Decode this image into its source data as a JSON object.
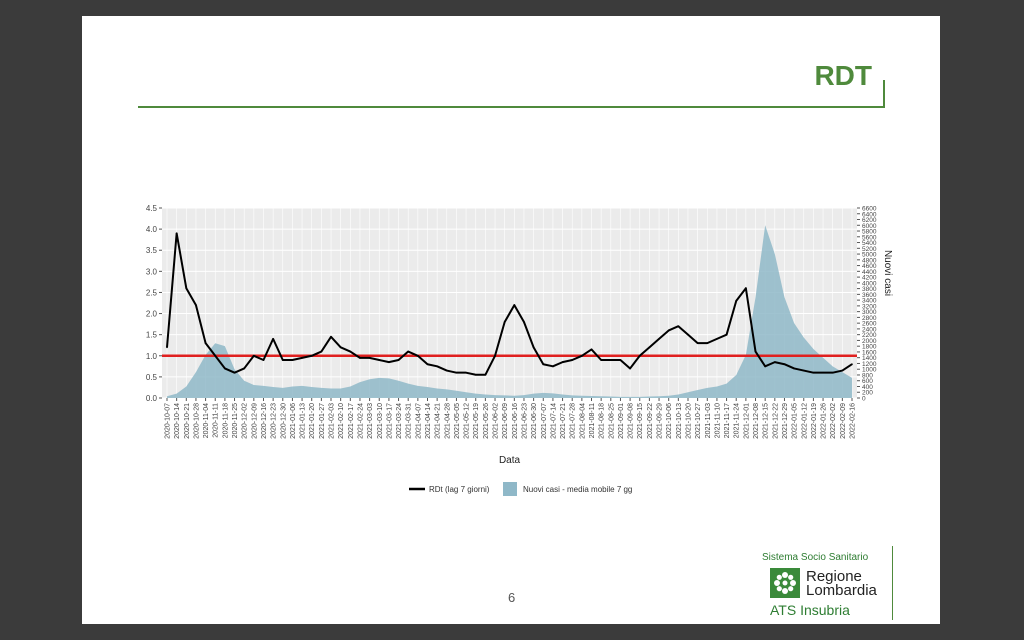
{
  "slide": {
    "title": "RDT",
    "page_number": "6",
    "logo": {
      "sistema": "Sistema Socio Sanitario",
      "region_line1": "Regione",
      "region_line2": "Lombardia",
      "ats": "ATS Insubria"
    }
  },
  "colors": {
    "accent": "#4f8a3c",
    "rdt_line": "#000000",
    "cases_area": "#8fb8c8",
    "threshold": "#e0201f",
    "panel_bg": "#ebebeb"
  },
  "chart_data": {
    "type": "line",
    "xlabel": "Data",
    "ylabel_right": "Nuovi casi",
    "y_left_lim": [
      0,
      4.5
    ],
    "y_left_ticks": [
      "0.0",
      "0.5",
      "1.0",
      "1.5",
      "2.0",
      "2.5",
      "3.0",
      "3.5",
      "4.0",
      "4.5"
    ],
    "y_right_lim": [
      0,
      6600
    ],
    "y_right_ticks": [
      "0",
      "200",
      "400",
      "600",
      "800",
      "1000",
      "1200",
      "1400",
      "1600",
      "1800",
      "2000",
      "2200",
      "2400",
      "2600",
      "2800",
      "3000",
      "3200",
      "3400",
      "3600",
      "3800",
      "4000",
      "4200",
      "4400",
      "4600",
      "4800",
      "5000",
      "5200",
      "5400",
      "5600",
      "5800",
      "6000",
      "6200",
      "6400",
      "6600"
    ],
    "x_ticks": [
      "2020-10-07",
      "2020-10-14",
      "2020-10-21",
      "2020-10-28",
      "2020-11-04",
      "2020-11-11",
      "2020-11-18",
      "2020-11-25",
      "2020-12-02",
      "2020-12-09",
      "2020-12-16",
      "2020-12-23",
      "2020-12-30",
      "2021-01-06",
      "2021-01-13",
      "2021-01-20",
      "2021-01-27",
      "2021-02-03",
      "2021-02-10",
      "2021-02-17",
      "2021-02-24",
      "2021-03-03",
      "2021-03-10",
      "2021-03-17",
      "2021-03-24",
      "2021-03-31",
      "2021-04-07",
      "2021-04-14",
      "2021-04-21",
      "2021-04-28",
      "2021-05-05",
      "2021-05-12",
      "2021-05-19",
      "2021-05-26",
      "2021-06-02",
      "2021-06-09",
      "2021-06-16",
      "2021-06-23",
      "2021-06-30",
      "2021-07-07",
      "2021-07-14",
      "2021-07-21",
      "2021-07-28",
      "2021-08-04",
      "2021-08-11",
      "2021-08-18",
      "2021-08-25",
      "2021-09-01",
      "2021-09-08",
      "2021-09-15",
      "2021-09-22",
      "2021-09-29",
      "2021-10-06",
      "2021-10-13",
      "2021-10-20",
      "2021-10-27",
      "2021-11-03",
      "2021-11-10",
      "2021-11-17",
      "2021-11-24",
      "2021-12-01",
      "2021-12-08",
      "2021-12-15",
      "2021-12-22",
      "2021-12-29",
      "2022-01-05",
      "2022-01-12",
      "2022-01-19",
      "2022-01-26",
      "2022-02-02",
      "2022-02-09",
      "2022-02-16"
    ],
    "threshold": 1.0,
    "legend": [
      {
        "name": "RDt (lag 7 giorni)"
      },
      {
        "name": "Nuovi casi - media mobile 7 gg"
      }
    ],
    "series": [
      {
        "name": "RDt (lag 7 giorni)",
        "axis": "left",
        "x": [
          0,
          1,
          2,
          3,
          4,
          5,
          6,
          7,
          8,
          9,
          10,
          11,
          12,
          13,
          14,
          15,
          16,
          17,
          18,
          19,
          20,
          21,
          22,
          23,
          24,
          25,
          26,
          27,
          28,
          29,
          30,
          31,
          32,
          33,
          34,
          35,
          36,
          37,
          38,
          39,
          40,
          41,
          42,
          43,
          44,
          45,
          46,
          47,
          48,
          49,
          50,
          51,
          52,
          53,
          54,
          55,
          56,
          57,
          58,
          59,
          60,
          61,
          62,
          63,
          64,
          65,
          66,
          67,
          68,
          69,
          70,
          71
        ],
        "values": [
          1.2,
          3.9,
          2.6,
          2.2,
          1.3,
          1.0,
          0.7,
          0.6,
          0.7,
          1.0,
          0.9,
          1.4,
          0.9,
          0.9,
          0.95,
          1.0,
          1.1,
          1.45,
          1.2,
          1.1,
          0.95,
          0.95,
          0.9,
          0.85,
          0.9,
          1.1,
          1.0,
          0.8,
          0.75,
          0.65,
          0.6,
          0.6,
          0.55,
          0.55,
          1.0,
          1.8,
          2.2,
          1.8,
          1.2,
          0.8,
          0.75,
          0.85,
          0.9,
          1.0,
          1.15,
          0.9,
          0.9,
          0.9,
          0.7,
          1.0,
          1.2,
          1.4,
          1.6,
          1.7,
          1.5,
          1.3,
          1.3,
          1.4,
          1.5,
          2.3,
          2.6,
          1.1,
          0.75,
          0.85,
          0.8,
          0.7,
          0.65,
          0.6,
          0.6,
          0.6,
          0.65,
          0.8
        ]
      },
      {
        "name": "Nuovi casi - media mobile 7 gg",
        "axis": "right",
        "x": [
          0,
          1,
          2,
          3,
          4,
          5,
          6,
          7,
          8,
          9,
          10,
          11,
          12,
          13,
          14,
          15,
          16,
          17,
          18,
          19,
          20,
          21,
          22,
          23,
          24,
          25,
          26,
          27,
          28,
          29,
          30,
          31,
          32,
          33,
          34,
          35,
          36,
          37,
          38,
          39,
          40,
          41,
          42,
          43,
          44,
          45,
          46,
          47,
          48,
          49,
          50,
          51,
          52,
          53,
          54,
          55,
          56,
          57,
          58,
          59,
          60,
          61,
          62,
          63,
          64,
          65,
          66,
          67,
          68,
          69,
          70,
          71
        ],
        "values": [
          60,
          150,
          400,
          900,
          1500,
          1900,
          1800,
          1000,
          600,
          450,
          420,
          380,
          350,
          400,
          420,
          380,
          350,
          330,
          330,
          400,
          550,
          650,
          700,
          680,
          600,
          500,
          420,
          380,
          330,
          300,
          250,
          200,
          150,
          120,
          100,
          90,
          80,
          100,
          150,
          180,
          160,
          120,
          90,
          80,
          70,
          60,
          50,
          40,
          40,
          40,
          50,
          60,
          80,
          120,
          200,
          280,
          350,
          400,
          500,
          800,
          1500,
          3500,
          6000,
          5000,
          3500,
          2600,
          2100,
          1700,
          1400,
          1100,
          900,
          700
        ]
      }
    ]
  }
}
